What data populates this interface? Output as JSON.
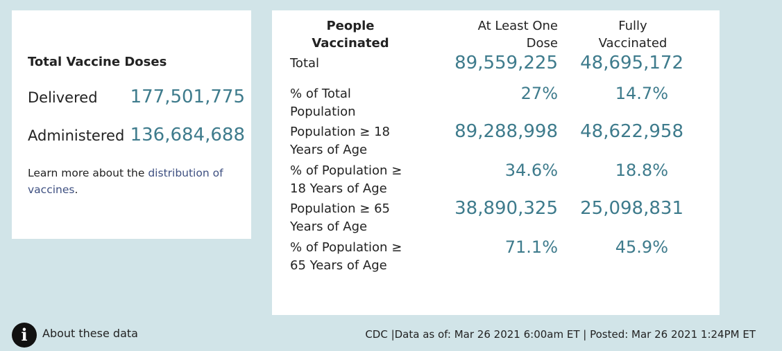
{
  "doses": {
    "title": "Total Vaccine Doses",
    "delivered_label": "Delivered",
    "delivered_value": "177,501,775",
    "administered_label": "Administered",
    "administered_value": "136,684,688",
    "learn_prefix": "Learn more about the ",
    "learn_link": "distribution of vaccines",
    "learn_suffix": "."
  },
  "table": {
    "headers": [
      "People Vaccinated",
      "At Least One Dose",
      "Fully Vaccinated"
    ],
    "rows": [
      {
        "label": "Total",
        "one_dose": "89,559,225",
        "fully": "48,695,172"
      },
      {
        "label": "% of Total Population",
        "one_dose": "27%",
        "fully": "14.7%"
      },
      {
        "label": "Population ≥ 18 Years of Age",
        "one_dose": "89,288,998",
        "fully": "48,622,958"
      },
      {
        "label": "% of Population ≥ 18 Years of Age",
        "one_dose": "34.6%",
        "fully": "18.8%"
      },
      {
        "label": "Population ≥ 65 Years of Age",
        "one_dose": "38,890,325",
        "fully": "25,098,831"
      },
      {
        "label": "% of Population ≥ 65 Years of Age",
        "one_dose": "71.1%",
        "fully": "45.9%"
      }
    ]
  },
  "footer": {
    "about": "About these data",
    "info_icon": "i",
    "source": "CDC |Data as of: Mar 26 2021 6:00am ET | Posted: Mar 26 2021 1:24PM ET"
  }
}
